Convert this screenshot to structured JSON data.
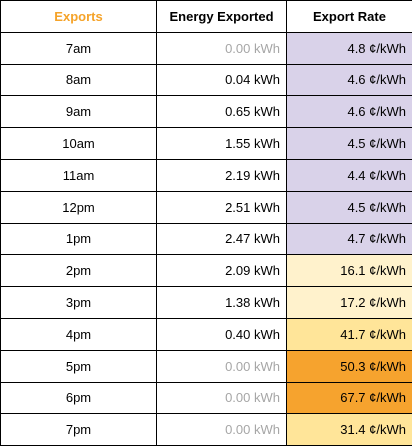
{
  "header": {
    "col1": "Exports",
    "col2": "Energy Exported",
    "col3": "Export Rate"
  },
  "colors": {
    "header_accent": "#f5a329",
    "zero_energy_text": "#a6a6a6",
    "rate_low": "#d9d2e9",
    "rate_mid_light": "#fff2cc",
    "rate_mid": "#ffe599",
    "rate_high": "#f6a32e"
  },
  "rows": [
    {
      "time": "7am",
      "energy": "0.00 kWh",
      "rate": "4.8 ¢/kWh",
      "zero": true,
      "rate_color": "#d9d2e9"
    },
    {
      "time": "8am",
      "energy": "0.04 kWh",
      "rate": "4.6 ¢/kWh",
      "zero": false,
      "rate_color": "#d9d2e9"
    },
    {
      "time": "9am",
      "energy": "0.65 kWh",
      "rate": "4.6 ¢/kWh",
      "zero": false,
      "rate_color": "#d9d2e9"
    },
    {
      "time": "10am",
      "energy": "1.55 kWh",
      "rate": "4.5 ¢/kWh",
      "zero": false,
      "rate_color": "#d9d2e9"
    },
    {
      "time": "11am",
      "energy": "2.19 kWh",
      "rate": "4.4 ¢/kWh",
      "zero": false,
      "rate_color": "#d9d2e9"
    },
    {
      "time": "12pm",
      "energy": "2.51 kWh",
      "rate": "4.5 ¢/kWh",
      "zero": false,
      "rate_color": "#d9d2e9"
    },
    {
      "time": "1pm",
      "energy": "2.47 kWh",
      "rate": "4.7 ¢/kWh",
      "zero": false,
      "rate_color": "#d9d2e9"
    },
    {
      "time": "2pm",
      "energy": "2.09 kWh",
      "rate": "16.1 ¢/kWh",
      "zero": false,
      "rate_color": "#fff2cc"
    },
    {
      "time": "3pm",
      "energy": "1.38 kWh",
      "rate": "17.2 ¢/kWh",
      "zero": false,
      "rate_color": "#fff2cc"
    },
    {
      "time": "4pm",
      "energy": "0.40 kWh",
      "rate": "41.7 ¢/kWh",
      "zero": false,
      "rate_color": "#ffe599"
    },
    {
      "time": "5pm",
      "energy": "0.00 kWh",
      "rate": "50.3 ¢/kWh",
      "zero": true,
      "rate_color": "#f6a32e"
    },
    {
      "time": "6pm",
      "energy": "0.00 kWh",
      "rate": "67.7 ¢/kWh",
      "zero": true,
      "rate_color": "#f6a32e"
    },
    {
      "time": "7pm",
      "energy": "0.00 kWh",
      "rate": "31.4 ¢/kWh",
      "zero": true,
      "rate_color": "#ffe599"
    }
  ]
}
